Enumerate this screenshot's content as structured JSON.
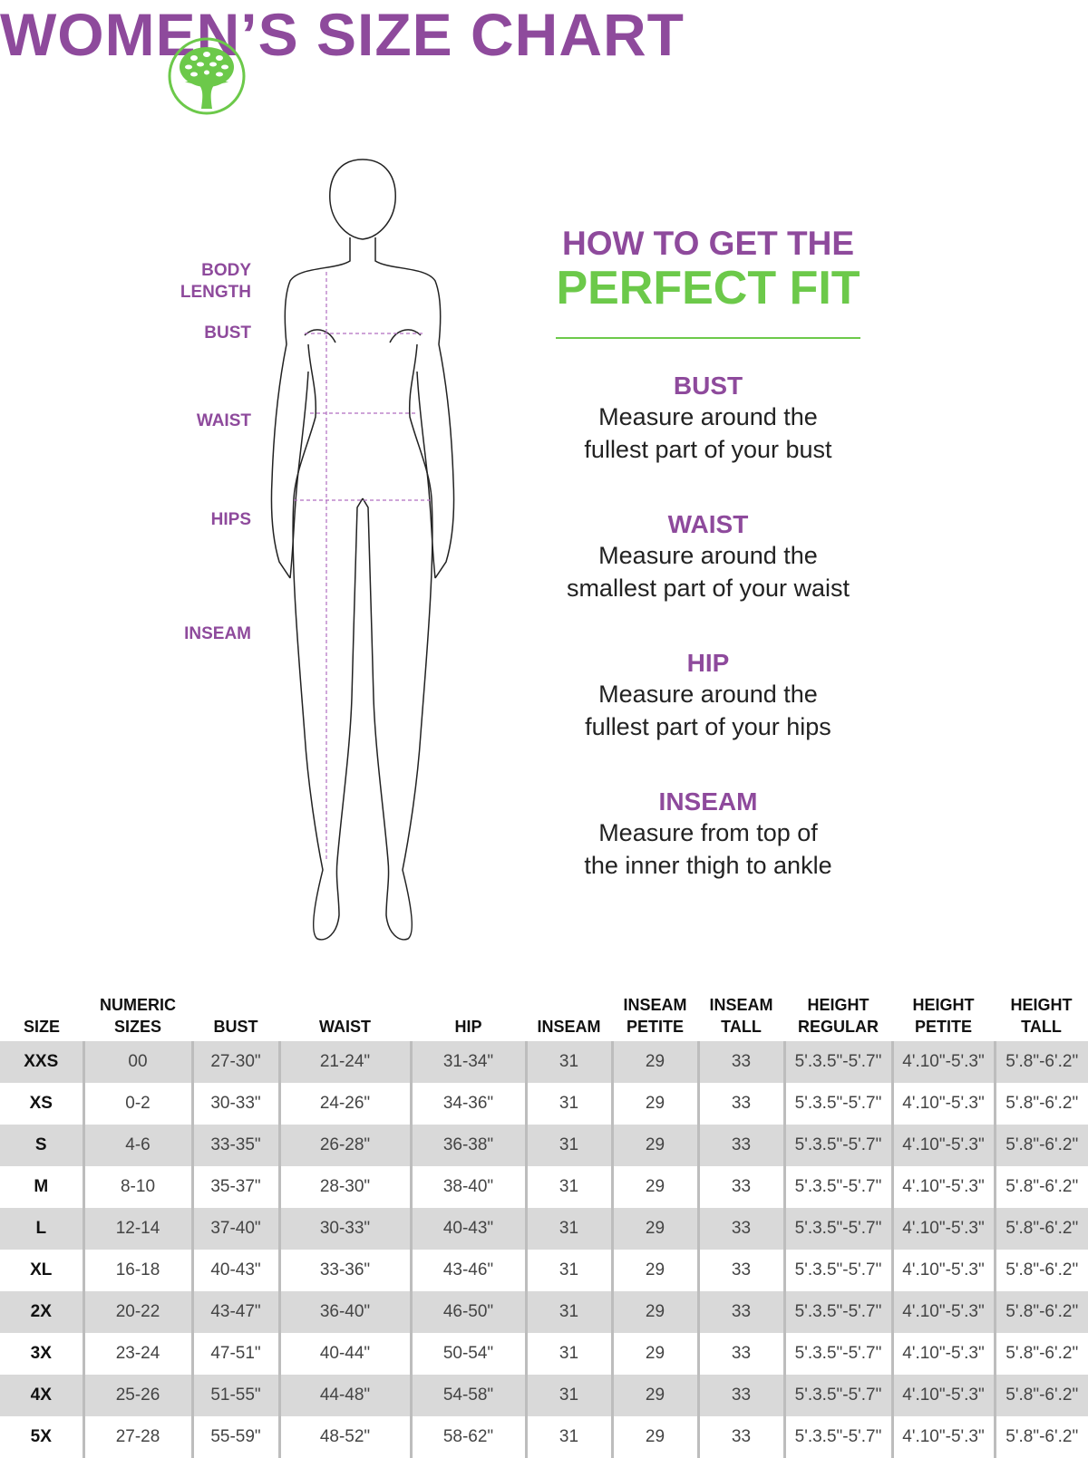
{
  "header": {
    "title": "WOMEN’S SIZE CHART",
    "logo": "tree-in-circle-logo"
  },
  "colors": {
    "purple": "#8e4a9c",
    "green": "#6cc94a",
    "row_shade": "#d9d9d9"
  },
  "figure_labels": {
    "body_length": "BODY LENGTH",
    "bust": "BUST",
    "waist": "WAIST",
    "hips": "HIPS",
    "inseam": "INSEAM"
  },
  "guide": {
    "heading1": "HOW TO GET THE",
    "heading2": "PERFECT FIT",
    "sections": [
      {
        "title": "BUST",
        "line1": "Measure around the",
        "line2": "fullest part of your bust"
      },
      {
        "title": "WAIST",
        "line1": "Measure around the",
        "line2": "smallest part of your waist"
      },
      {
        "title": "HIP",
        "line1": "Measure around the",
        "line2": "fullest part of your hips"
      },
      {
        "title": "INSEAM",
        "line1": "Measure from top of",
        "line2": "the inner thigh to ankle"
      }
    ]
  },
  "table": {
    "headers": [
      [
        "SIZE",
        ""
      ],
      [
        "NUMERIC",
        "SIZES"
      ],
      [
        "BUST",
        ""
      ],
      [
        "WAIST",
        ""
      ],
      [
        "HIP",
        ""
      ],
      [
        "INSEAM",
        ""
      ],
      [
        "INSEAM",
        "PETITE"
      ],
      [
        "INSEAM",
        "TALL"
      ],
      [
        "HEIGHT",
        "REGULAR"
      ],
      [
        "HEIGHT",
        "PETITE"
      ],
      [
        "HEIGHT",
        "TALL"
      ]
    ],
    "rows": [
      [
        "XXS",
        "00",
        "27-30\"",
        "21-24\"",
        "31-34\"",
        "31",
        "29",
        "33",
        "5'.3.5\"-5'.7\"",
        "4'.10\"-5'.3\"",
        "5'.8\"-6'.2\""
      ],
      [
        "XS",
        "0-2",
        "30-33\"",
        "24-26\"",
        "34-36\"",
        "31",
        "29",
        "33",
        "5'.3.5\"-5'.7\"",
        "4'.10\"-5'.3\"",
        "5'.8\"-6'.2\""
      ],
      [
        "S",
        "4-6",
        "33-35\"",
        "26-28\"",
        "36-38\"",
        "31",
        "29",
        "33",
        "5'.3.5\"-5'.7\"",
        "4'.10\"-5'.3\"",
        "5'.8\"-6'.2\""
      ],
      [
        "M",
        "8-10",
        "35-37\"",
        "28-30\"",
        "38-40\"",
        "31",
        "29",
        "33",
        "5'.3.5\"-5'.7\"",
        "4'.10\"-5'.3\"",
        "5'.8\"-6'.2\""
      ],
      [
        "L",
        "12-14",
        "37-40\"",
        "30-33\"",
        "40-43\"",
        "31",
        "29",
        "33",
        "5'.3.5\"-5'.7\"",
        "4'.10\"-5'.3\"",
        "5'.8\"-6'.2\""
      ],
      [
        "XL",
        "16-18",
        "40-43\"",
        "33-36\"",
        "43-46\"",
        "31",
        "29",
        "33",
        "5'.3.5\"-5'.7\"",
        "4'.10\"-5'.3\"",
        "5'.8\"-6'.2\""
      ],
      [
        "2X",
        "20-22",
        "43-47\"",
        "36-40\"",
        "46-50\"",
        "31",
        "29",
        "33",
        "5'.3.5\"-5'.7\"",
        "4'.10\"-5'.3\"",
        "5'.8\"-6'.2\""
      ],
      [
        "3X",
        "23-24",
        "47-51\"",
        "40-44\"",
        "50-54\"",
        "31",
        "29",
        "33",
        "5'.3.5\"-5'.7\"",
        "4'.10\"-5'.3\"",
        "5'.8\"-6'.2\""
      ],
      [
        "4X",
        "25-26",
        "51-55\"",
        "44-48\"",
        "54-58\"",
        "31",
        "29",
        "33",
        "5'.3.5\"-5'.7\"",
        "4'.10\"-5'.3\"",
        "5'.8\"-6'.2\""
      ],
      [
        "5X",
        "27-28",
        "55-59\"",
        "48-52\"",
        "58-62\"",
        "31",
        "29",
        "33",
        "5'.3.5\"-5'.7\"",
        "4'.10\"-5'.3\"",
        "5'.8\"-6'.2\""
      ]
    ]
  }
}
